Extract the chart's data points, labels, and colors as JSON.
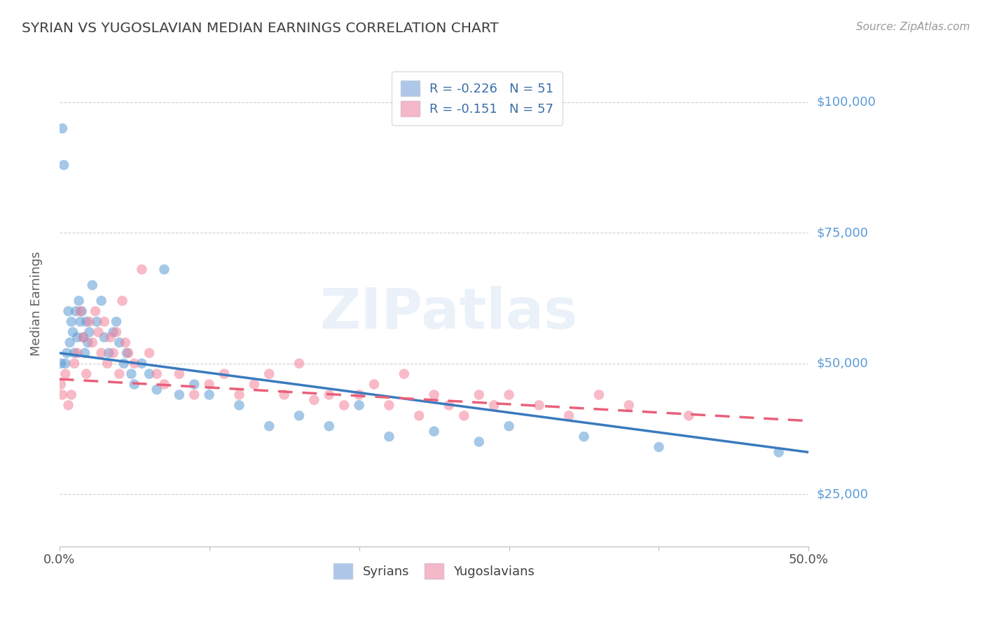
{
  "title": "SYRIAN VS YUGOSLAVIAN MEDIAN EARNINGS CORRELATION CHART",
  "source": "Source: ZipAtlas.com",
  "ylabel": "Median Earnings",
  "y_ticks": [
    25000,
    50000,
    75000,
    100000
  ],
  "y_tick_labels": [
    "$25,000",
    "$50,000",
    "$75,000",
    "$100,000"
  ],
  "x_min": 0.0,
  "x_max": 0.5,
  "y_min": 15000,
  "y_max": 108000,
  "watermark": "ZIPatlas",
  "syrians_x": [
    0.001,
    0.002,
    0.003,
    0.004,
    0.005,
    0.006,
    0.007,
    0.008,
    0.009,
    0.01,
    0.011,
    0.012,
    0.013,
    0.014,
    0.015,
    0.016,
    0.017,
    0.018,
    0.019,
    0.02,
    0.022,
    0.025,
    0.028,
    0.03,
    0.033,
    0.036,
    0.038,
    0.04,
    0.043,
    0.045,
    0.048,
    0.05,
    0.055,
    0.06,
    0.065,
    0.07,
    0.08,
    0.09,
    0.1,
    0.12,
    0.14,
    0.16,
    0.18,
    0.2,
    0.22,
    0.25,
    0.28,
    0.3,
    0.35,
    0.4,
    0.48
  ],
  "syrians_y": [
    50000,
    95000,
    88000,
    50000,
    52000,
    60000,
    54000,
    58000,
    56000,
    52000,
    60000,
    55000,
    62000,
    58000,
    60000,
    55000,
    52000,
    58000,
    54000,
    56000,
    65000,
    58000,
    62000,
    55000,
    52000,
    56000,
    58000,
    54000,
    50000,
    52000,
    48000,
    46000,
    50000,
    48000,
    45000,
    68000,
    44000,
    46000,
    44000,
    42000,
    38000,
    40000,
    38000,
    42000,
    36000,
    37000,
    35000,
    38000,
    36000,
    34000,
    33000
  ],
  "yugoslavians_x": [
    0.001,
    0.002,
    0.004,
    0.006,
    0.008,
    0.01,
    0.012,
    0.014,
    0.016,
    0.018,
    0.02,
    0.022,
    0.024,
    0.026,
    0.028,
    0.03,
    0.032,
    0.034,
    0.036,
    0.038,
    0.04,
    0.042,
    0.044,
    0.046,
    0.05,
    0.055,
    0.06,
    0.065,
    0.07,
    0.08,
    0.09,
    0.1,
    0.11,
    0.12,
    0.13,
    0.14,
    0.15,
    0.16,
    0.17,
    0.18,
    0.19,
    0.2,
    0.21,
    0.22,
    0.23,
    0.24,
    0.25,
    0.26,
    0.27,
    0.28,
    0.29,
    0.3,
    0.32,
    0.34,
    0.36,
    0.38,
    0.42
  ],
  "yugoslavians_y": [
    46000,
    44000,
    48000,
    42000,
    44000,
    50000,
    52000,
    60000,
    55000,
    48000,
    58000,
    54000,
    60000,
    56000,
    52000,
    58000,
    50000,
    55000,
    52000,
    56000,
    48000,
    62000,
    54000,
    52000,
    50000,
    68000,
    52000,
    48000,
    46000,
    48000,
    44000,
    46000,
    48000,
    44000,
    46000,
    48000,
    44000,
    50000,
    43000,
    44000,
    42000,
    44000,
    46000,
    42000,
    48000,
    40000,
    44000,
    42000,
    40000,
    44000,
    42000,
    44000,
    42000,
    40000,
    44000,
    42000,
    40000
  ],
  "syrian_color": "#5b9bd5",
  "yugoslavian_color": "#f4829a",
  "syrian_line_color": "#3a7abf",
  "yugoslavian_line_color": "#e8607a",
  "R_syrian": -0.226,
  "N_syrian": 51,
  "R_yugoslavian": -0.151,
  "N_yugoslavian": 57,
  "background_color": "#ffffff",
  "grid_color": "#cccccc",
  "title_color": "#404040",
  "y_tick_color": "#5b9bd5",
  "legend_blue_color": "#aec6e8",
  "legend_pink_color": "#f4b8c8"
}
